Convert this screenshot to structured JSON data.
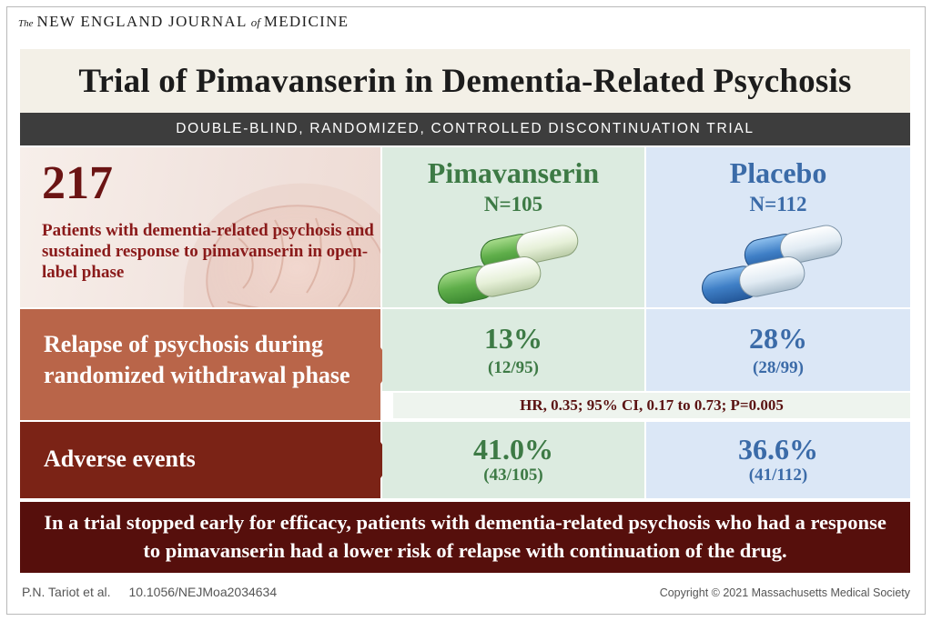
{
  "journal": {
    "the": "The",
    "name_part1": "NEW ENGLAND JOURNAL",
    "of": "of",
    "name_part2": "MEDICINE"
  },
  "title": "Trial of Pimavanserin in Dementia-Related Psychosis",
  "subtitle": "DOUBLE-BLIND, RANDOMIZED, CONTROLLED DISCONTINUATION TRIAL",
  "enrollment": {
    "count": "217",
    "description": "Patients with dementia-related psychosis and sustained response to pimavanserin in open-label phase"
  },
  "arms": [
    {
      "name": "Pimavanserin",
      "n": "N=105",
      "color": "#3d7a45",
      "relapse_pct": "13%",
      "relapse_frac": "(12/95)",
      "adverse_pct": "41.0%",
      "adverse_frac": "(43/105)"
    },
    {
      "name": "Placebo",
      "n": "N=112",
      "color": "#3b6ba8",
      "relapse_pct": "28%",
      "relapse_frac": "(28/99)",
      "adverse_pct": "36.6%",
      "adverse_frac": "(41/112)"
    }
  ],
  "rows": {
    "relapse_label_line1": "Relapse of  psychosis during",
    "relapse_label_line2": "randomized withdrawal phase",
    "adverse_label": "Adverse events"
  },
  "hazard_ratio": "HR, 0.35; 95% CI, 0.17 to 0.73; P=0.005",
  "conclusion": "In a trial stopped early for efficacy, patients with dementia-related psychosis who had a response to pimavanserin had a lower risk of relapse with continuation of the drug.",
  "footer": {
    "authors": "P.N. Tariot et al.",
    "doi": "10.1056/NEJMoa2034634",
    "copyright": "Copyright © 2021 Massachusetts Medical Society"
  },
  "icons": [
    "head-silhouette-icon",
    "green-capsule-icon",
    "blue-capsule-icon"
  ]
}
